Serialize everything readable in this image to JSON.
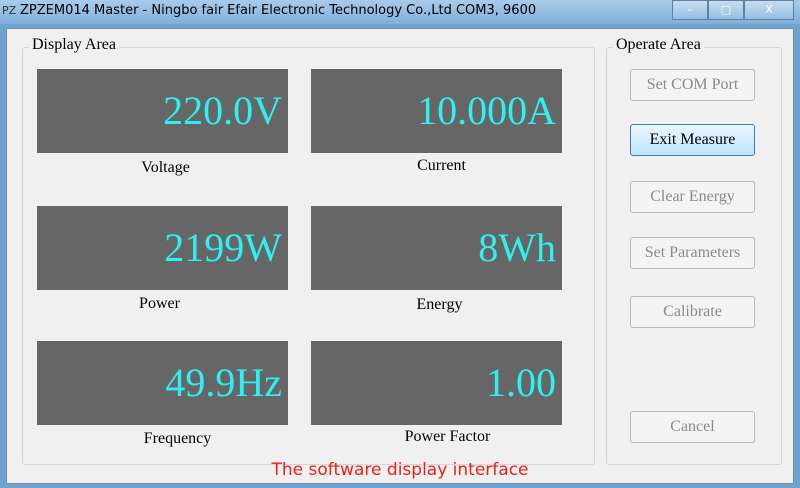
{
  "window": {
    "title": "ZPZEM014 Master - Ningbo   fair Efair Electronic Technology Co.,Ltd  COM3, 9600",
    "icon_text": "PZ",
    "minimize": "–",
    "maximize": "□",
    "close": "X"
  },
  "display_area": {
    "label": "Display Area",
    "readings": [
      {
        "value": "220.0V",
        "label": "Voltage"
      },
      {
        "value": "10.000A",
        "label": "Current"
      },
      {
        "value": "2199W",
        "label": "Power"
      },
      {
        "value": "8Wh",
        "label": "Energy"
      },
      {
        "value": "49.9Hz",
        "label": "Frequency"
      },
      {
        "value": "1.00",
        "label": "Power Factor"
      }
    ]
  },
  "operate_area": {
    "label": "Operate Area",
    "buttons": [
      {
        "label": "Set COM Port",
        "enabled": false
      },
      {
        "label": "Exit Measure",
        "enabled": true
      },
      {
        "label": "Clear Energy",
        "enabled": false
      },
      {
        "label": "Set Parameters",
        "enabled": false
      },
      {
        "label": "Calibrate",
        "enabled": false
      },
      {
        "label": "Cancel",
        "enabled": false
      }
    ]
  },
  "colors": {
    "display_bg": "#666666",
    "display_text": "#2ef0f0",
    "caption": "#e8211c"
  },
  "caption": "The software display interface"
}
